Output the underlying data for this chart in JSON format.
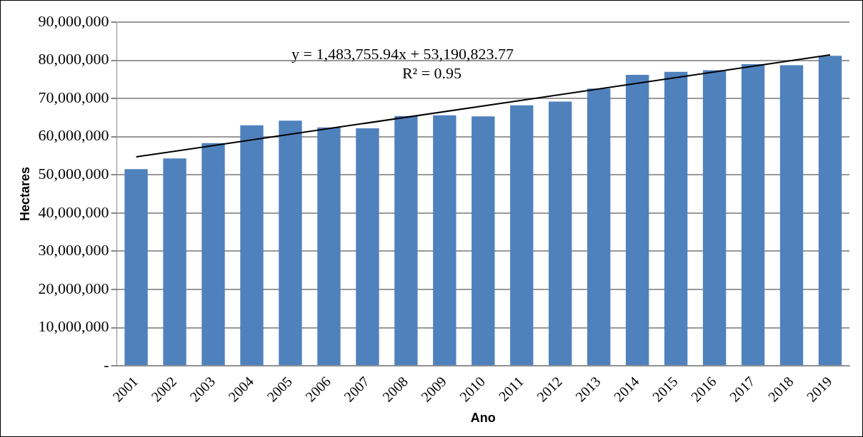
{
  "chart_data": {
    "type": "bar",
    "xlabel": "Ano",
    "ylabel": "Hectares",
    "categories": [
      "2001",
      "2002",
      "2003",
      "2004",
      "2005",
      "2006",
      "2007",
      "2008",
      "2009",
      "2010",
      "2011",
      "2012",
      "2013",
      "2014",
      "2015",
      "2016",
      "2017",
      "2018",
      "2019"
    ],
    "series": [
      {
        "color": "#4f81bd",
        "values": [
          51500000,
          54300000,
          58300000,
          63000000,
          64200000,
          62400000,
          62200000,
          65400000,
          65600000,
          65300000,
          68200000,
          69200000,
          72600000,
          76200000,
          77000000,
          77400000,
          79000000,
          78700000,
          81200000
        ]
      },
      {
        "type": "line",
        "color": "#000000",
        "values": [
          54700000,
          null,
          null,
          null,
          null,
          null,
          null,
          null,
          null,
          null,
          null,
          null,
          null,
          null,
          null,
          null,
          null,
          null,
          81400000
        ]
      }
    ],
    "ylim": [
      0,
      90000000
    ],
    "yticks": [
      {
        "value": 0,
        "label": "-"
      },
      {
        "value": 10000000,
        "label": "10,000,000"
      },
      {
        "value": 20000000,
        "label": "20,000,000"
      },
      {
        "value": 30000000,
        "label": "30,000,000"
      },
      {
        "value": 40000000,
        "label": "40,000,000"
      },
      {
        "value": 50000000,
        "label": "50,000,000"
      },
      {
        "value": 60000000,
        "label": "60,000,000"
      },
      {
        "value": 70000000,
        "label": "70,000,000"
      },
      {
        "value": 80000000,
        "label": "80,000,000"
      },
      {
        "value": 90000000,
        "label": "90,000,000"
      }
    ],
    "grid": "y",
    "legend": false,
    "marker": "none",
    "line_style": "solid",
    "annotations": [
      "y = 1,483,755.94x + 53,190,823.77",
      "R² = 0.95"
    ]
  }
}
